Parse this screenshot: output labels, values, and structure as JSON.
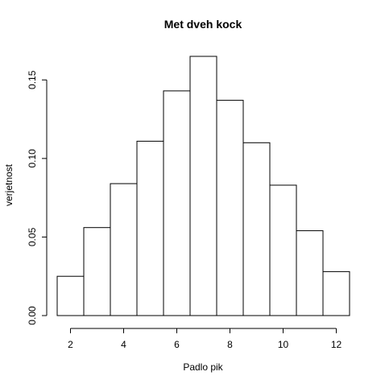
{
  "chart_data": {
    "type": "bar",
    "title": "Met dveh kock",
    "xlabel": "Padlo pik",
    "ylabel": "verjetnost",
    "categories": [
      "2",
      "3",
      "4",
      "5",
      "6",
      "7",
      "8",
      "9",
      "10",
      "11",
      "12"
    ],
    "values": [
      0.025,
      0.056,
      0.084,
      0.111,
      0.143,
      0.165,
      0.137,
      0.11,
      0.083,
      0.054,
      0.028
    ],
    "bin_width": 1,
    "xlim": [
      1.5,
      12.5
    ],
    "ylim": [
      0,
      0.165
    ],
    "x_ticks": [
      2,
      4,
      6,
      8,
      10,
      12
    ],
    "y_ticks": [
      0.0,
      0.05,
      0.1,
      0.15
    ],
    "y_tick_labels": [
      "0.00",
      "0.05",
      "0.10",
      "0.15"
    ],
    "grid": false,
    "bar_fill": "#ffffff",
    "bar_stroke": "#000000"
  }
}
